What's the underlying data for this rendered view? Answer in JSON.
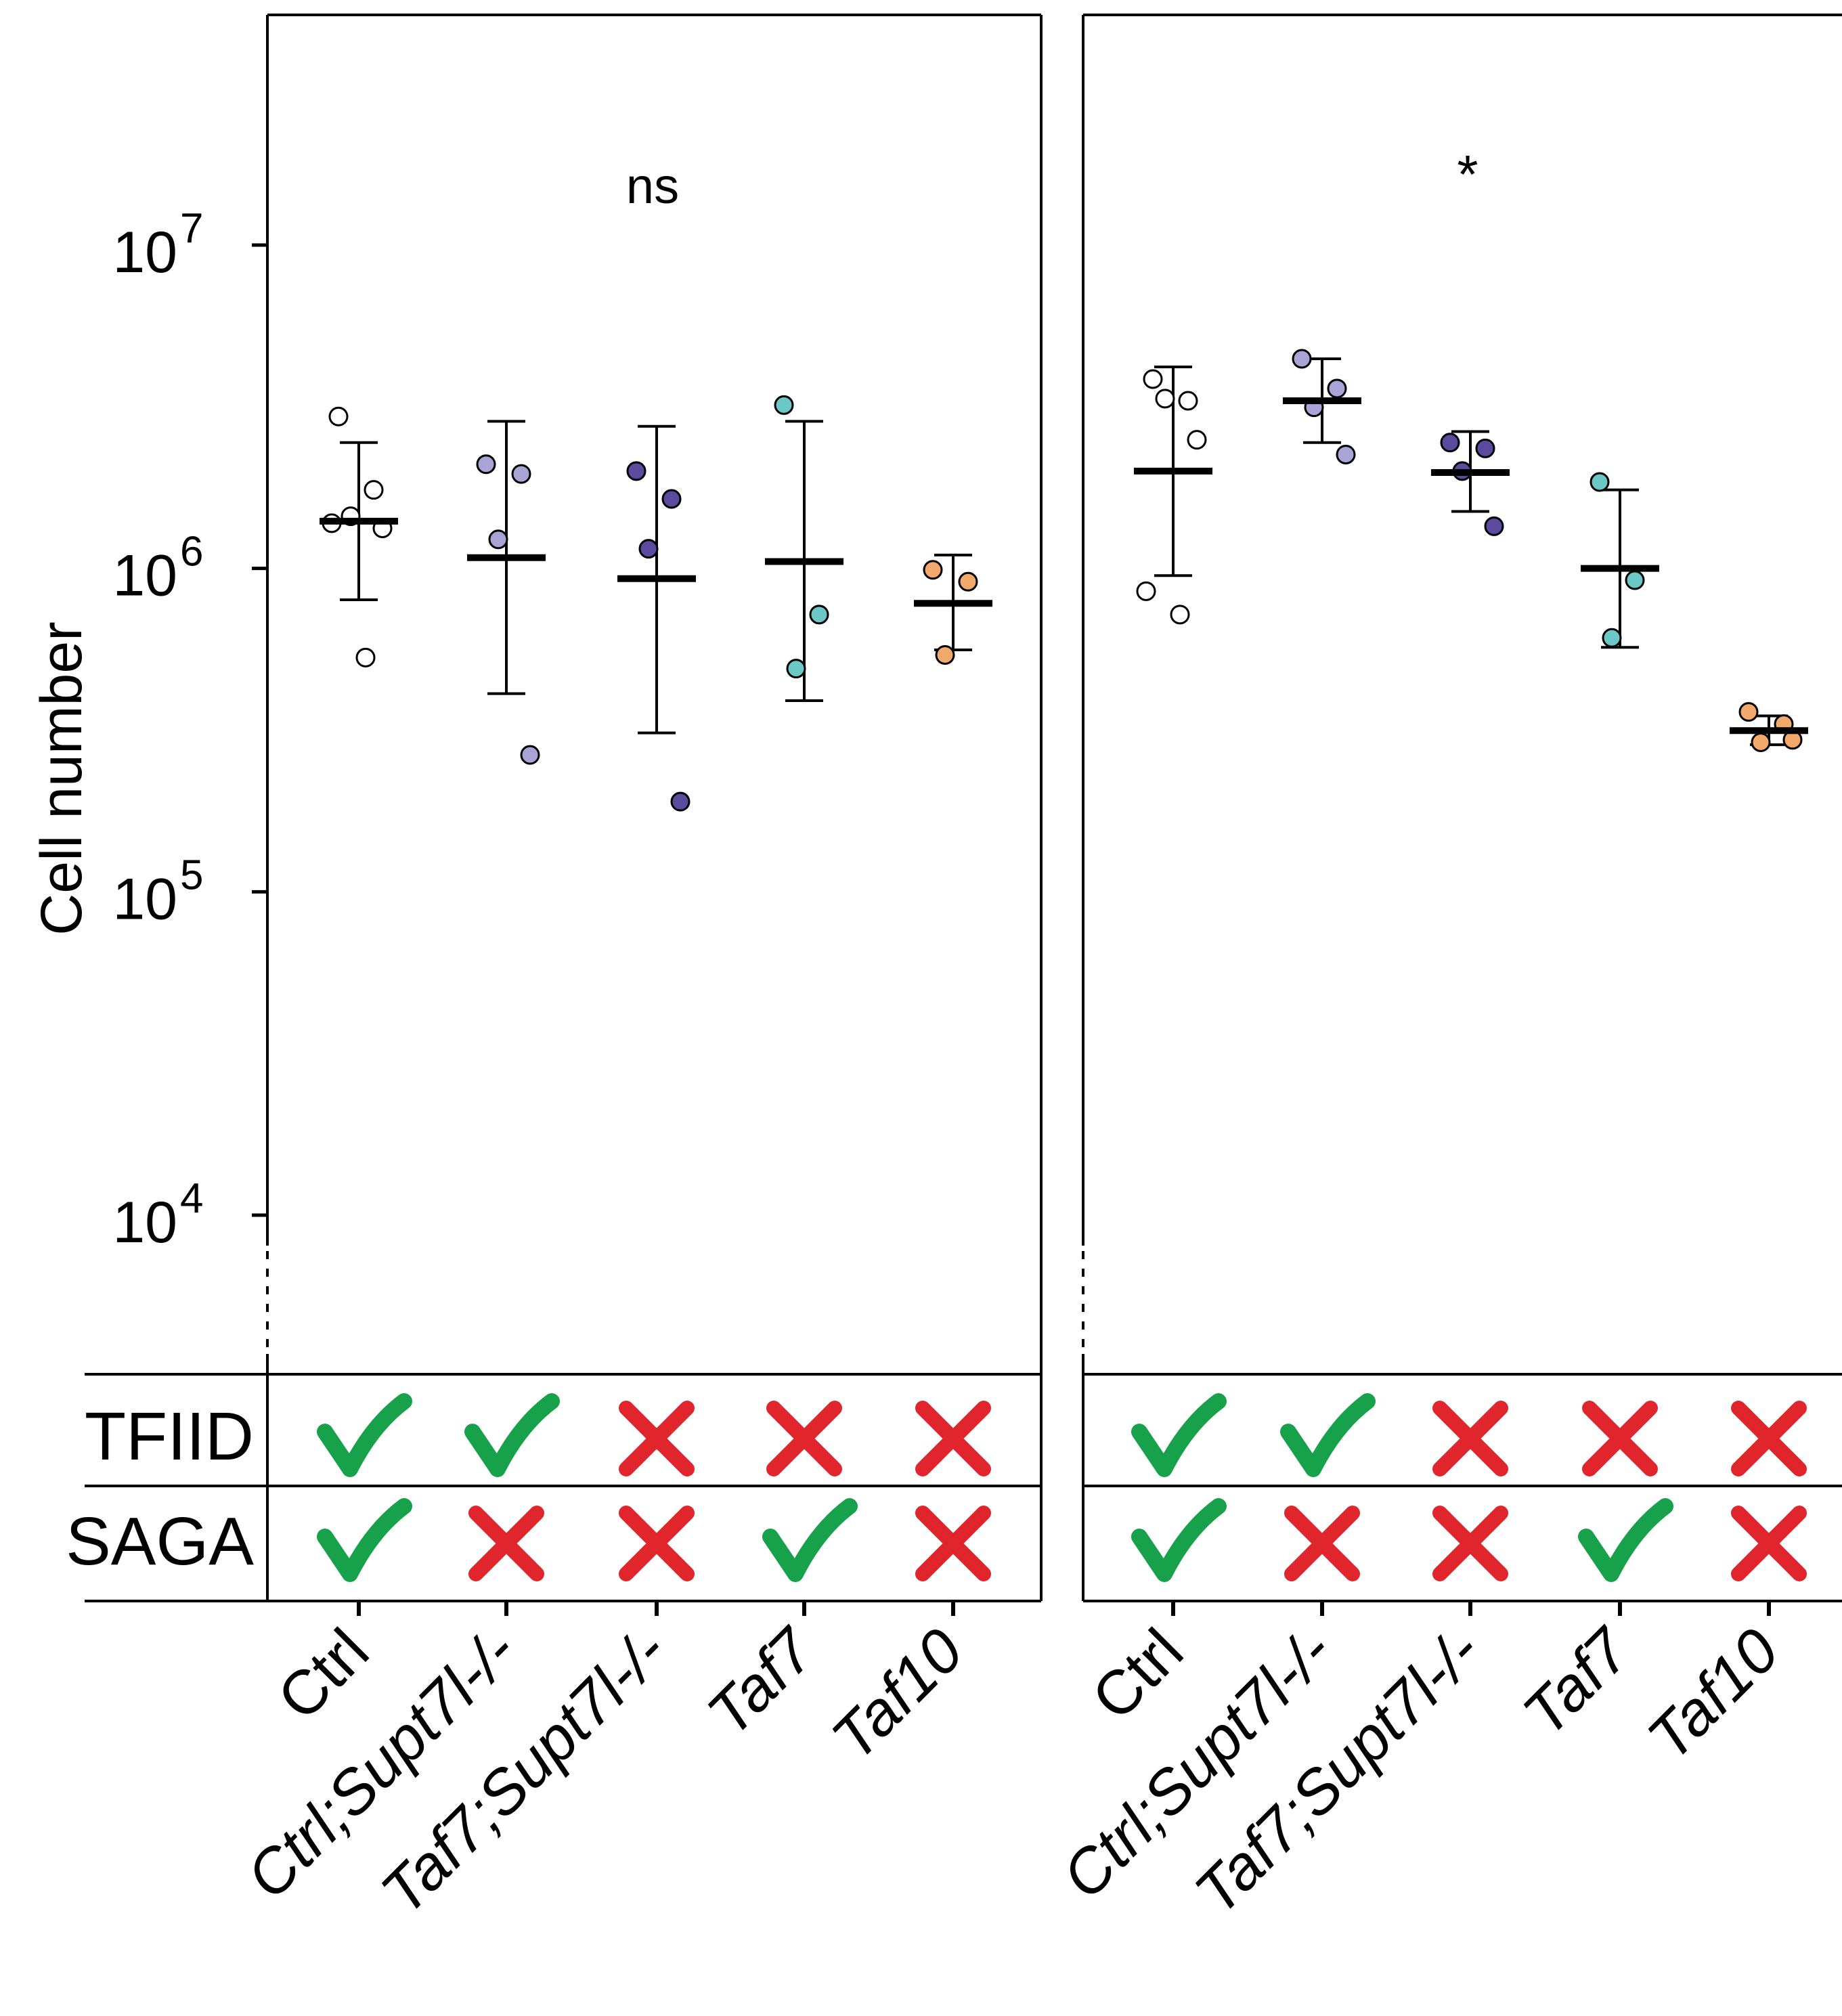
{
  "chart_data": {
    "type": "scatter",
    "y_axis_label": "Cell number",
    "y_scale": "log10",
    "y_ticks": [
      {
        "base": "10",
        "exp": "7",
        "value": 10000000
      },
      {
        "base": "10",
        "exp": "6",
        "value": 1000000
      },
      {
        "base": "10",
        "exp": "5",
        "value": 100000
      },
      {
        "base": "10",
        "exp": "4",
        "value": 10000
      }
    ],
    "categories": [
      {
        "label": "Ctrl",
        "color": "#ffffff"
      },
      {
        "label": "Ctrl;Supt7l-/-",
        "color": "#a9a3d6"
      },
      {
        "label": "Taf7;Supt7l-/-",
        "color": "#5b4a9e"
      },
      {
        "label": "Taf7",
        "color": "#6cc7c7"
      },
      {
        "label": "Taf10",
        "color": "#f3a96b"
      }
    ],
    "panels": [
      {
        "significance": "ns",
        "groups": [
          {
            "mean": 1400000,
            "err_low": 800000,
            "err_high": 2450000,
            "points": [
              2950000,
              1750000,
              1450000,
              1330000,
              1380000,
              530000
            ]
          },
          {
            "mean": 1080000,
            "err_low": 410000,
            "err_high": 2850000,
            "points": [
              2100000,
              1960000,
              1230000,
              265000
            ]
          },
          {
            "mean": 930000,
            "err_low": 310000,
            "err_high": 2750000,
            "points": [
              2000000,
              1640000,
              1150000,
              190000
            ]
          },
          {
            "mean": 1050000,
            "err_low": 390000,
            "err_high": 2850000,
            "points": [
              3200000,
              720000,
              490000
            ]
          },
          {
            "mean": 780000,
            "err_low": 560000,
            "err_high": 1100000,
            "points": [
              990000,
              910000,
              540000
            ]
          }
        ]
      },
      {
        "significance": "*",
        "groups": [
          {
            "mean": 2000000,
            "err_low": 950000,
            "err_high": 4200000,
            "points": [
              3850000,
              3300000,
              3350000,
              2500000,
              850000,
              720000
            ]
          },
          {
            "mean": 3300000,
            "err_low": 2450000,
            "err_high": 4450000,
            "points": [
              4450000,
              3600000,
              3150000,
              2250000
            ]
          },
          {
            "mean": 1980000,
            "err_low": 1500000,
            "err_high": 2650000,
            "points": [
              2450000,
              2350000,
              2000000,
              1350000
            ]
          },
          {
            "mean": 1000000,
            "err_low": 570000,
            "err_high": 1750000,
            "points": [
              1850000,
              920000,
              610000
            ]
          },
          {
            "mean": 315000,
            "err_low": 285000,
            "err_high": 350000,
            "points": [
              360000,
              330000,
              290000,
              295000
            ]
          }
        ]
      }
    ],
    "rows": [
      {
        "label": "TFIID",
        "values": [
          true,
          true,
          false,
          false,
          false
        ]
      },
      {
        "label": "SAGA",
        "values": [
          true,
          false,
          false,
          true,
          false
        ]
      }
    ],
    "check_color": "#16a14a",
    "cross_color": "#e0262c"
  }
}
